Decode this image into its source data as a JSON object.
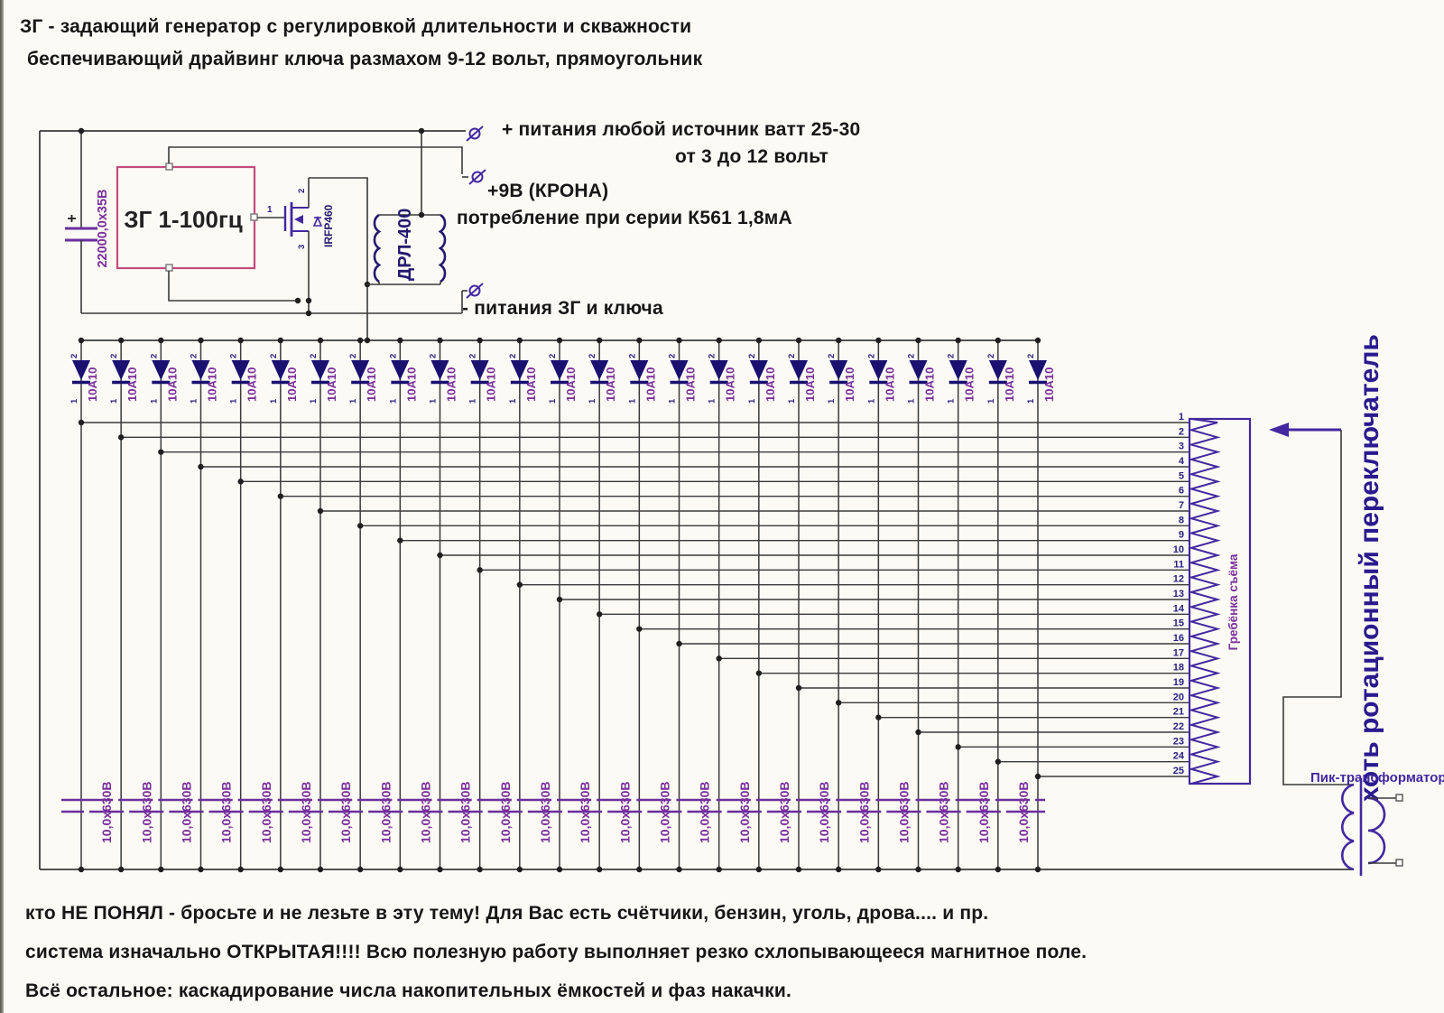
{
  "header": {
    "line1": "ЗГ - задающий генератор с регулировкой длительности и скважности",
    "line2": "беспечивающий драйвинг ключа размахом 9-12 вольт, прямоугольник"
  },
  "power": {
    "plus_main": "+ питания  любой источник ватт 25-30",
    "plus_range": "от 3 до 12 вольт",
    "krona": "+9В (КРОНА)",
    "krona_sub": "потребление при серии К561  1,8мА",
    "minus": "- питания ЗГ и ключа"
  },
  "oscillator": {
    "box_label": "ЗГ  1-100гц",
    "cap_label": "22000,0х35В",
    "gate_wire_pin": "1"
  },
  "mosfet": {
    "label": "IRFP460",
    "pin_drain": "2",
    "pin_source": "3"
  },
  "inductor": {
    "label": "ДРЛ-400"
  },
  "diodes": {
    "count": 25,
    "label": "10А10",
    "pin_top": "2",
    "pin_bottom": "1"
  },
  "capacitors": {
    "count": 24,
    "label": "10,0х630В"
  },
  "connector": {
    "label": "Гребёнка съёма",
    "pins": [
      "1",
      "2",
      "3",
      "4",
      "5",
      "6",
      "7",
      "8",
      "9",
      "10",
      "11",
      "12",
      "13",
      "14",
      "15",
      "16",
      "17",
      "18",
      "19",
      "20",
      "21",
      "22",
      "23",
      "24",
      "25"
    ]
  },
  "switch": {
    "label": "хоть ротационный переключатель"
  },
  "transformer": {
    "label": "Пик-трансформатор"
  },
  "notes": {
    "line1": "кто НЕ ПОНЯЛ - бросьте и не лезьте в эту тему! Для Вас есть счётчики, бензин, уголь, дрова.... и пр.",
    "line2": "система изначально ОТКРЫТАЯ!!!! Всю полезную работу выполняет резко схлопывающееся магнитное поле.",
    "line3": "Всё остальное: каскадирование числа накопительных ёмкостей и фаз накачки."
  },
  "colors": {
    "wire": "#3a3a3a",
    "dot": "#1f1f1f",
    "violet": "#4328a0",
    "diode_fill": "#191070",
    "label_violet": "#7a2f9b",
    "pin_number": "#2a2080",
    "plate": "#6a2f9e",
    "zg_box": "#c24b7e",
    "navy_text": "#241a70",
    "switch_text": "#2a1a8e",
    "black_text": "#161616"
  }
}
